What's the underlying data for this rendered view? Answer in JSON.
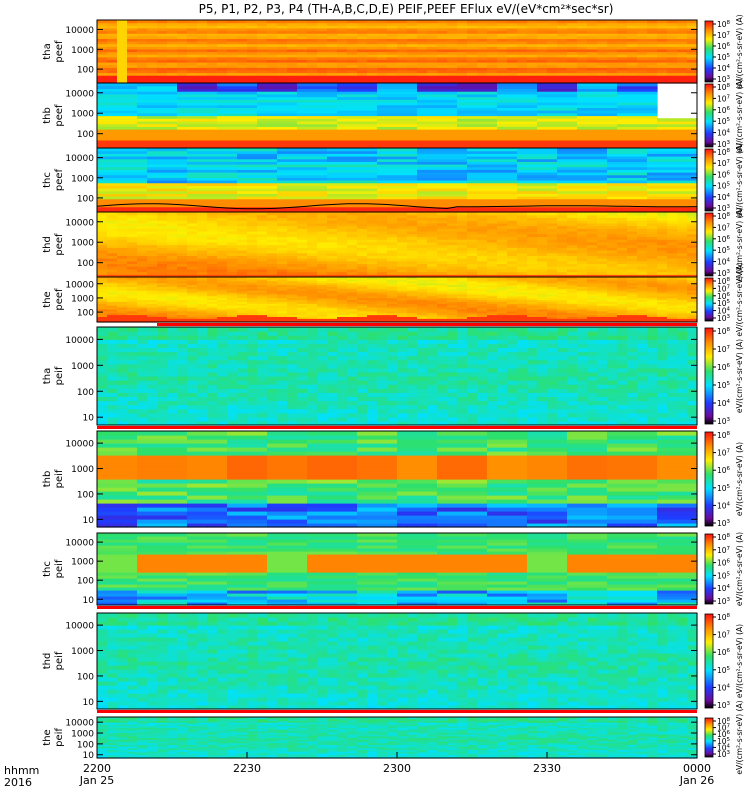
{
  "title": "P5, P1, P2, P3, P4 (TH-A,B,C,D,E) PEIF,PEEF EFlux eV/(eV*cm²*sec*sr)",
  "time_axis": {
    "row1_label": "hhmm",
    "row2_label": "2016",
    "ticks": [
      {
        "value": 0,
        "label": "2200",
        "sub": "Jan 25"
      },
      {
        "value": 30,
        "label": "2230",
        "sub": ""
      },
      {
        "value": 60,
        "label": "2300",
        "sub": ""
      },
      {
        "value": 90,
        "label": "2330",
        "sub": ""
      },
      {
        "value": 120,
        "label": "0000",
        "sub": "Jan 26"
      }
    ],
    "range_minutes": [
      0,
      120
    ]
  },
  "colors": {
    "black": "#000000",
    "purple": "#6b0a9a",
    "blue": "#1f3cff",
    "cyan": "#00e1ff",
    "green": "#2ee06a",
    "yellow": "#ffee00",
    "orange": "#ff8c00",
    "red": "#ff1010",
    "marker_red": "#ff0000"
  },
  "chart_data": [
    {
      "type": "heatmap",
      "probe": "tha",
      "product": "peef",
      "ylabel_top": "tha",
      "ylabel_bottom": "peef",
      "yscale": "log",
      "ylim": [
        20,
        30000
      ],
      "y_ticks": [
        100,
        1000,
        10000
      ],
      "y_tick_labels": [
        "100",
        "1000",
        "10000"
      ],
      "colorbar": {
        "exp_min": 3,
        "exp_max": 8,
        "exp_labels": [
          "3",
          "4",
          "5",
          "6",
          "7",
          "8"
        ]
      },
      "colorbar_title": "eV/(cm²-s-sr-eV) (A)",
      "pattern": "warm",
      "marker_bar": false
    },
    {
      "type": "heatmap",
      "probe": "thb",
      "product": "peef",
      "ylabel_top": "thb",
      "ylabel_bottom": "peef",
      "yscale": "log",
      "ylim": [
        20,
        30000
      ],
      "y_ticks": [
        100,
        1000,
        10000
      ],
      "y_tick_labels": [
        "100",
        "1000",
        "10000"
      ],
      "colorbar": {
        "exp_min": 3,
        "exp_max": 8,
        "exp_labels": [
          "3",
          "4",
          "5",
          "6",
          "7",
          "8"
        ]
      },
      "colorbar_title": "eV/(cm²-s-sr-eV) (A)",
      "pattern": "thb_electron",
      "marker_bar": false
    },
    {
      "type": "heatmap",
      "probe": "thc",
      "product": "peef",
      "ylabel_top": "thc",
      "ylabel_bottom": "peef",
      "yscale": "log",
      "ylim": [
        20,
        30000
      ],
      "y_ticks": [
        100,
        1000,
        10000
      ],
      "y_tick_labels": [
        "100",
        "1000",
        "10000"
      ],
      "colorbar": {
        "exp_min": 3,
        "exp_max": 8,
        "exp_labels": [
          "3",
          "4",
          "5",
          "6",
          "7",
          "8"
        ]
      },
      "colorbar_title": "eV/(cm²-s-sr-eV) (A)",
      "pattern": "thc_electron",
      "marker_bar": false
    },
    {
      "type": "heatmap",
      "probe": "thd",
      "product": "peef",
      "ylabel_top": "thd",
      "ylabel_bottom": "peef",
      "yscale": "log",
      "ylim": [
        20,
        30000
      ],
      "y_ticks": [
        100,
        1000,
        10000
      ],
      "y_tick_labels": [
        "100",
        "1000",
        "10000"
      ],
      "colorbar": {
        "exp_min": 3,
        "exp_max": 8,
        "exp_labels": [
          "3",
          "4",
          "5",
          "6",
          "7",
          "8"
        ]
      },
      "colorbar_title": "eV/(cm²-s-sr-eV) (A)",
      "pattern": "warm_soft",
      "marker_bar": false
    },
    {
      "type": "heatmap",
      "probe": "the",
      "product": "peef",
      "ylabel_top": "the",
      "ylabel_bottom": "peef",
      "yscale": "log",
      "ylim": [
        20,
        30000
      ],
      "y_ticks": [
        100,
        1000,
        10000
      ],
      "y_tick_labels": [
        "100",
        "1000",
        "10000"
      ],
      "colorbar": {
        "exp_min": 3,
        "exp_max": 8,
        "exp_labels": [
          "3",
          "4",
          "5",
          "6",
          "7",
          "8"
        ]
      },
      "colorbar_title": "eV/(cm²-s-sr-eV) (A)",
      "pattern": "warm_wavy",
      "marker_bar": true
    },
    {
      "type": "heatmap",
      "probe": "tha",
      "product": "peif",
      "ylabel_top": "tha",
      "ylabel_bottom": "peif",
      "yscale": "log",
      "ylim": [
        5,
        30000
      ],
      "y_ticks": [
        10,
        100,
        1000,
        10000
      ],
      "y_tick_labels": [
        "10",
        "100",
        "1000",
        "10000"
      ],
      "colorbar": {
        "exp_min": 3,
        "exp_max": 8,
        "exp_labels": [
          "3",
          "4",
          "5",
          "6",
          "7",
          "8"
        ]
      },
      "colorbar_title": "eV/(cm²-s-sr-eV) (A)",
      "pattern": "cool",
      "marker_bar": true
    },
    {
      "type": "heatmap",
      "probe": "thb",
      "product": "peif",
      "ylabel_top": "thb",
      "ylabel_bottom": "peif",
      "yscale": "log",
      "ylim": [
        5,
        30000
      ],
      "y_ticks": [
        10,
        100,
        1000,
        10000
      ],
      "y_tick_labels": [
        "10",
        "100",
        "1000",
        "10000"
      ],
      "colorbar": {
        "exp_min": 3,
        "exp_max": 8,
        "exp_labels": [
          "3",
          "4",
          "5",
          "6",
          "7",
          "8"
        ]
      },
      "colorbar_title": "eV/(cm²-s-sr-eV) (A)",
      "pattern": "thb_ion",
      "marker_bar": false
    },
    {
      "type": "heatmap",
      "probe": "thc",
      "product": "peif",
      "ylabel_top": "thc",
      "ylabel_bottom": "peif",
      "yscale": "log",
      "ylim": [
        5,
        30000
      ],
      "y_ticks": [
        10,
        100,
        1000,
        10000
      ],
      "y_tick_labels": [
        "10",
        "100",
        "1000",
        "10000"
      ],
      "colorbar": {
        "exp_min": 3,
        "exp_max": 8,
        "exp_labels": [
          "3",
          "4",
          "5",
          "6",
          "7",
          "8"
        ]
      },
      "colorbar_title": "eV/(cm²-s-sr-eV) (A)",
      "pattern": "thc_ion",
      "marker_bar": true
    },
    {
      "type": "heatmap",
      "probe": "thd",
      "product": "peif",
      "ylabel_top": "thd",
      "ylabel_bottom": "peif",
      "yscale": "log",
      "ylim": [
        5,
        30000
      ],
      "y_ticks": [
        10,
        100,
        1000,
        10000
      ],
      "y_tick_labels": [
        "10",
        "100",
        "1000",
        "10000"
      ],
      "colorbar": {
        "exp_min": 3,
        "exp_max": 8,
        "exp_labels": [
          "3",
          "4",
          "5",
          "6",
          "7",
          "8"
        ]
      },
      "colorbar_title": "eV/(cm²-s-sr-eV) (A)",
      "pattern": "cool",
      "marker_bar": true
    },
    {
      "type": "heatmap",
      "probe": "the",
      "product": "peif",
      "ylabel_top": "the",
      "ylabel_bottom": "peif",
      "yscale": "log",
      "ylim": [
        5,
        30000
      ],
      "y_ticks": [
        10,
        100,
        1000,
        10000
      ],
      "y_tick_labels": [
        "10",
        "100",
        "1000",
        "10000"
      ],
      "colorbar": {
        "exp_min": 3,
        "exp_max": 8,
        "exp_labels": [
          "3",
          "4",
          "5",
          "6",
          "7",
          "8"
        ]
      },
      "colorbar_title": "eV/(cm²-s-sr-eV) (A)",
      "pattern": "cool",
      "marker_bar": false
    }
  ]
}
